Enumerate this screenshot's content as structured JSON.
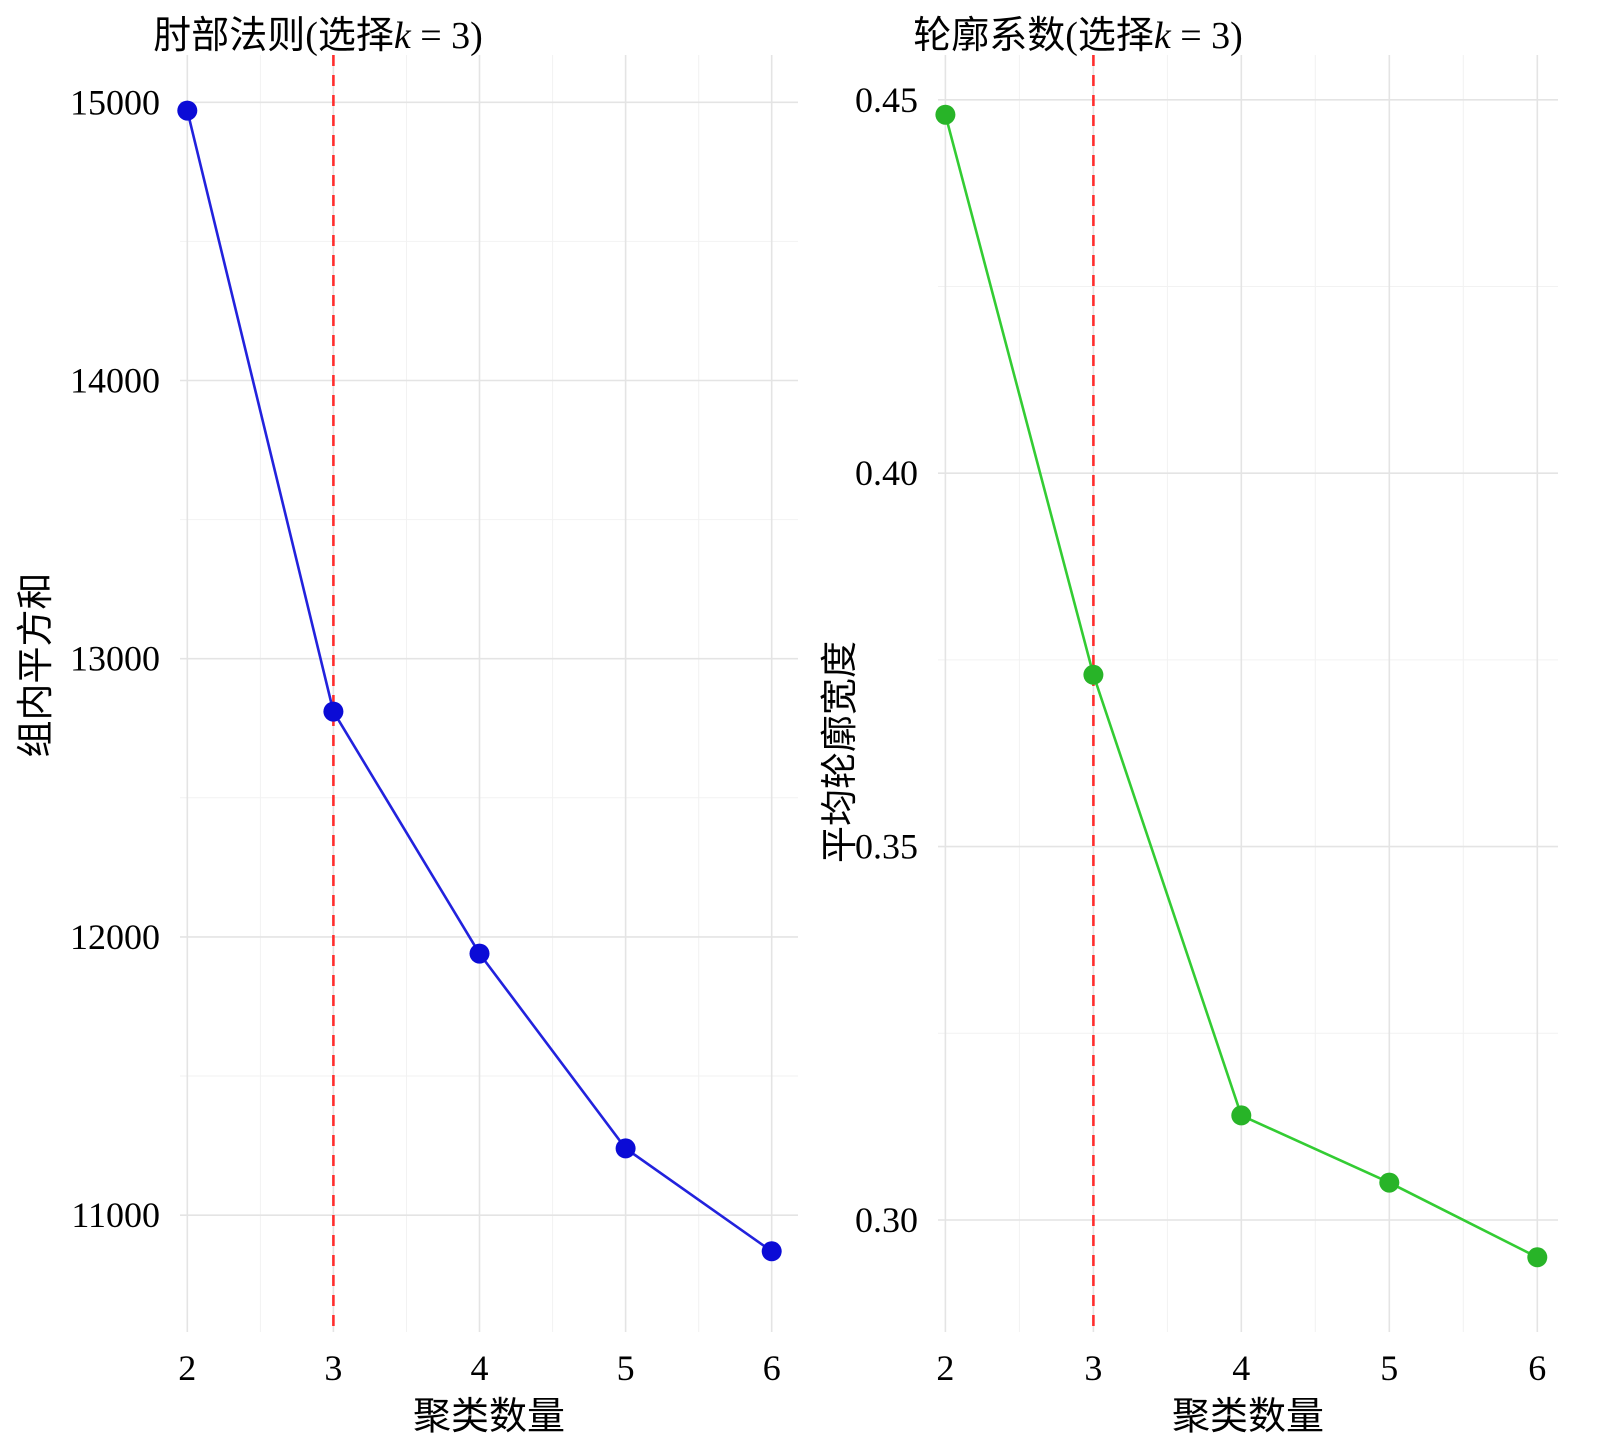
{
  "figure": {
    "background": "#ffffff"
  },
  "chart_data": [
    {
      "type": "line",
      "title": {
        "prefix": "肘部法则(选择",
        "k": "k",
        "suffix": " = 3)"
      },
      "xlabel": "聚类数量",
      "ylabel": "组内平方和",
      "x": [
        2,
        3,
        4,
        5,
        6
      ],
      "y": [
        14970,
        12810,
        11940,
        11240,
        10870
      ],
      "xticks": [
        2,
        3,
        4,
        5,
        6
      ],
      "xtick_labels": [
        "2",
        "3",
        "4",
        "5",
        "6"
      ],
      "yticks": [
        11000,
        12000,
        13000,
        14000,
        15000
      ],
      "ytick_labels": [
        "11000",
        "12000",
        "13000",
        "14000",
        "15000"
      ],
      "xlim": [
        1.95,
        6.18
      ],
      "ylim": [
        10580,
        15170
      ],
      "vline": {
        "x": 3,
        "color": "#ff2d2d",
        "style": "dashed"
      },
      "line_color": "#2222dd",
      "point_color": "#0b0bd6",
      "grid": true,
      "legend": "none"
    },
    {
      "type": "line",
      "title": {
        "prefix": "轮廓系数(选择",
        "k": "k",
        "suffix": " = 3)"
      },
      "xlabel": "聚类数量",
      "ylabel": "平均轮廓宽度",
      "x": [
        2,
        3,
        4,
        5,
        6
      ],
      "y": [
        0.448,
        0.373,
        0.314,
        0.305,
        0.295
      ],
      "xticks": [
        2,
        3,
        4,
        5,
        6
      ],
      "xtick_labels": [
        "2",
        "3",
        "4",
        "5",
        "6"
      ],
      "yticks": [
        0.3,
        0.35,
        0.4,
        0.45
      ],
      "ytick_labels": [
        "0.30",
        "0.35",
        "0.40",
        "0.45"
      ],
      "xlim": [
        1.95,
        6.14
      ],
      "ylim": [
        0.285,
        0.456
      ],
      "vline": {
        "x": 3,
        "color": "#ff2d2d",
        "style": "dashed"
      },
      "line_color": "#33cc33",
      "point_color": "#28b428",
      "grid": true,
      "legend": "none"
    }
  ]
}
